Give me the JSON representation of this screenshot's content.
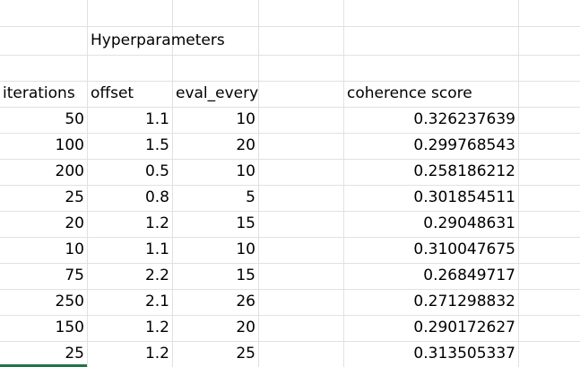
{
  "sheet": {
    "title_cell": "Hyperparameters",
    "headers": {
      "iterations": "iterations",
      "offset": "offset",
      "eval_every": "eval_every",
      "coherence": "coherence score"
    },
    "rows": [
      {
        "iterations": "50",
        "offset": "1.1",
        "eval_every": "10",
        "coherence": "0.326237639"
      },
      {
        "iterations": "100",
        "offset": "1.5",
        "eval_every": "20",
        "coherence": "0.299768543"
      },
      {
        "iterations": "200",
        "offset": "0.5",
        "eval_every": "10",
        "coherence": "0.258186212"
      },
      {
        "iterations": "25",
        "offset": "0.8",
        "eval_every": "5",
        "coherence": "0.301854511"
      },
      {
        "iterations": "20",
        "offset": "1.2",
        "eval_every": "15",
        "coherence": "0.29048631"
      },
      {
        "iterations": "10",
        "offset": "1.1",
        "eval_every": "10",
        "coherence": "0.310047675"
      },
      {
        "iterations": "75",
        "offset": "2.2",
        "eval_every": "15",
        "coherence": "0.26849717"
      },
      {
        "iterations": "250",
        "offset": "2.1",
        "eval_every": "26",
        "coherence": "0.271298832"
      },
      {
        "iterations": "150",
        "offset": "1.2",
        "eval_every": "20",
        "coherence": "0.290172627"
      },
      {
        "iterations": "25",
        "offset": "1.2",
        "eval_every": "25",
        "coherence": "0.313505337"
      }
    ]
  },
  "colors": {
    "gridline": "#e1e1e1",
    "selection": "#217346",
    "text": "#000000"
  }
}
